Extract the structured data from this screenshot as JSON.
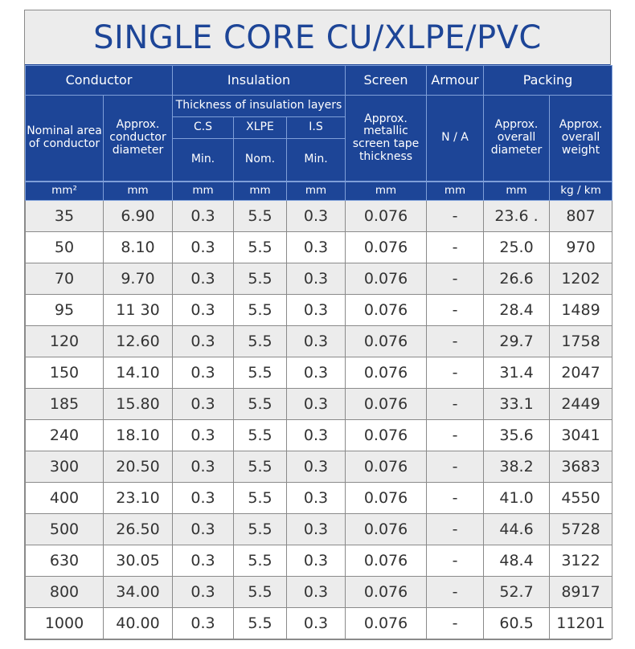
{
  "title": "SINGLE CORE CU/XLPE/PVC",
  "header": {
    "groups": {
      "conductor": "Conductor",
      "insulation": "Insulation",
      "screen": "Screen",
      "armour": "Armour",
      "packing": "Packing"
    },
    "sub": {
      "nominal_area": "Nominal area of conductor",
      "conductor_diameter": "Approx. conductor diameter",
      "thickness_layers": "Thickness of insulation layers",
      "cs": "C.S",
      "xlpe": "XLPE",
      "is": "I.S",
      "cs_min": "Min.",
      "xlpe_nom": "Nom.",
      "is_min": "Min.",
      "screen_tape": "Approx. metallic screen tape thickness",
      "armour_na": "N / A",
      "overall_diameter": "Approx. overall diameter",
      "overall_weight": "Approx. overall weight"
    },
    "units": [
      "mm²",
      "mm",
      "mm",
      "mm",
      "mm",
      "mm",
      "mm",
      "mm",
      "kg / km"
    ]
  },
  "rows": [
    [
      "35",
      "6.90",
      "0.3",
      "5.5",
      "0.3",
      "0.076",
      "-",
      "23.6 .",
      "807"
    ],
    [
      "50",
      "8.10",
      "0.3",
      "5.5",
      "0.3",
      "0.076",
      "-",
      "25.0",
      "970"
    ],
    [
      "70",
      "9.70",
      "0.3",
      "5.5",
      "0.3",
      "0.076",
      "-",
      "26.6",
      "1202"
    ],
    [
      "95",
      "11 30",
      "0.3",
      "5.5",
      "0.3",
      "0.076",
      "-",
      "28.4",
      "1489"
    ],
    [
      "120",
      "12.60",
      "0.3",
      "5.5",
      "0.3",
      "0.076",
      "-",
      "29.7",
      "1758"
    ],
    [
      "150",
      "14.10",
      "0.3",
      "5.5",
      "0.3",
      "0.076",
      "-",
      "31.4",
      "2047"
    ],
    [
      "185",
      "15.80",
      "0.3",
      "5.5",
      "0.3",
      "0.076",
      "-",
      "33.1",
      "2449"
    ],
    [
      "240",
      "18.10",
      "0.3",
      "5.5",
      "0.3",
      "0.076",
      "-",
      "35.6",
      "3041"
    ],
    [
      "300",
      "20.50",
      "0.3",
      "5.5",
      "0.3",
      "0.076",
      "-",
      "38.2",
      "3683"
    ],
    [
      "400",
      "23.10",
      "0.3",
      "5.5",
      "0.3",
      "0.076",
      "-",
      "41.0",
      "4550"
    ],
    [
      "500",
      "26.50",
      "0.3",
      "5.5",
      "0.3",
      "0.076",
      "-",
      "44.6",
      "5728"
    ],
    [
      "630",
      "30.05",
      "0.3",
      "5.5",
      "0.3",
      "0.076",
      "-",
      "48.4",
      "3122"
    ],
    [
      "800",
      "34.00",
      "0.3",
      "5.5",
      "0.3",
      "0.076",
      "-",
      "52.7",
      "8917"
    ],
    [
      "1000",
      "40.00",
      "0.3",
      "5.5",
      "0.3",
      "0.076",
      "-",
      "60.5",
      "11201"
    ]
  ],
  "colors": {
    "header_blue": "#1d4597",
    "title_bg": "#ececec",
    "row_alt_bg": "#ececec",
    "text": "#333333"
  }
}
